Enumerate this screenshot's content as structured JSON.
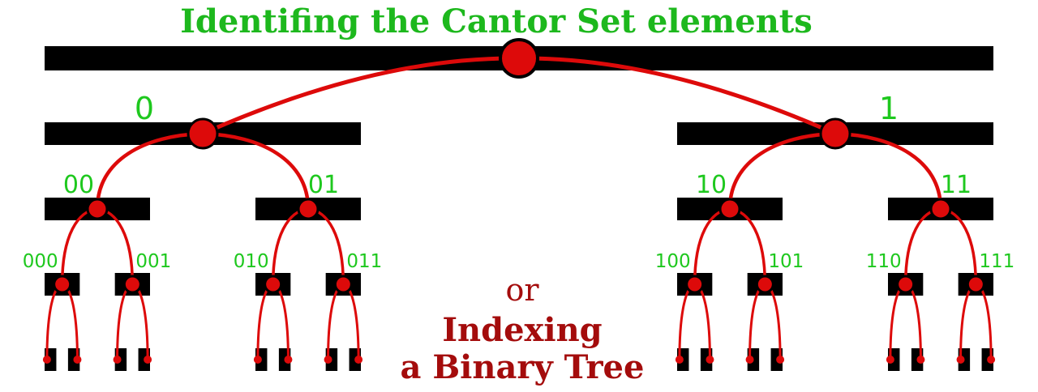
{
  "title": "Identifing the Cantor Set elements",
  "connector_text": "or",
  "subtitle_lines": [
    "Indexing",
    "a Binary Tree"
  ],
  "colors": {
    "title": "#1db81d",
    "labels": "#1ec81e",
    "tree": "#dd0a0a",
    "segment": "#000000",
    "subtitle": "#a40c0c"
  },
  "levels": [
    {
      "level": 0,
      "labels": []
    },
    {
      "level": 1,
      "labels": [
        "0",
        "1"
      ]
    },
    {
      "level": 2,
      "labels": [
        "00",
        "01",
        "10",
        "11"
      ]
    },
    {
      "level": 3,
      "labels": [
        "000",
        "001",
        "010",
        "011",
        "100",
        "101",
        "110",
        "111"
      ]
    },
    {
      "level": 4,
      "labels": []
    }
  ]
}
